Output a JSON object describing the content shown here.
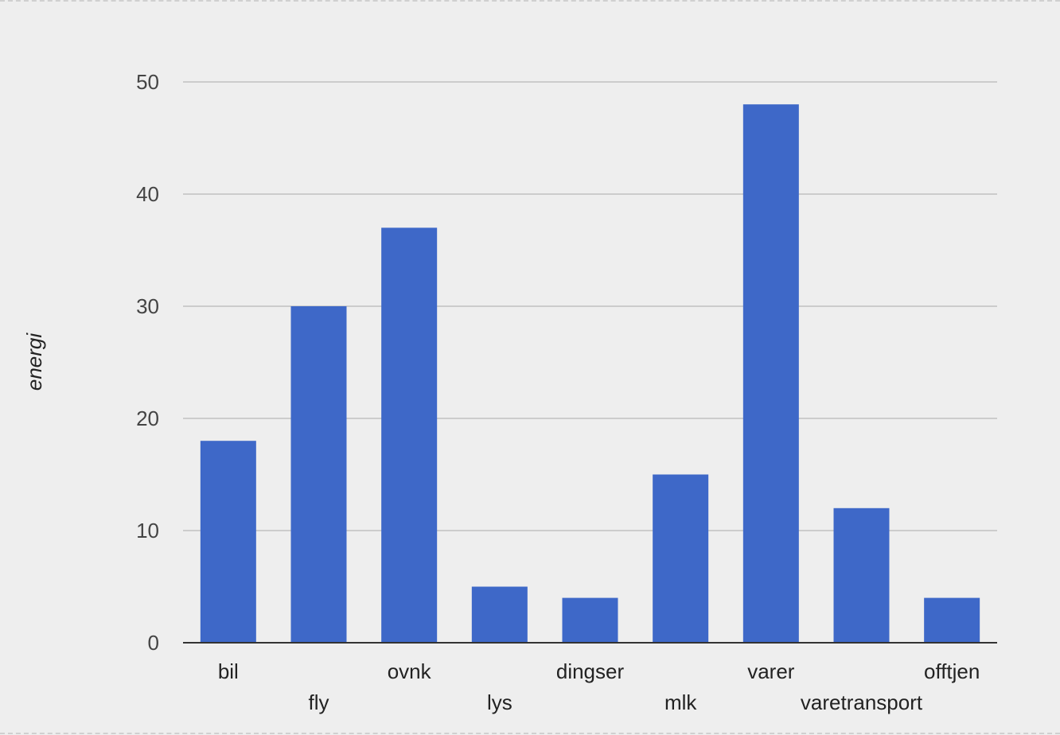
{
  "chart_data": {
    "type": "bar",
    "categories": [
      "bil",
      "fly",
      "ovnk",
      "lys",
      "dingser",
      "mlk",
      "varer",
      "varetransport",
      "offtjen"
    ],
    "values": [
      18,
      30,
      37,
      5,
      4,
      15,
      48,
      12,
      4
    ],
    "ylabel": "energi",
    "xlabel": "",
    "ylim": [
      0,
      50
    ],
    "yticks": [
      0,
      10,
      20,
      30,
      40,
      50
    ],
    "grid": true,
    "bar_color": "#3e68c8",
    "gridline_color": "#cccccc",
    "baseline_color": "#333333"
  }
}
